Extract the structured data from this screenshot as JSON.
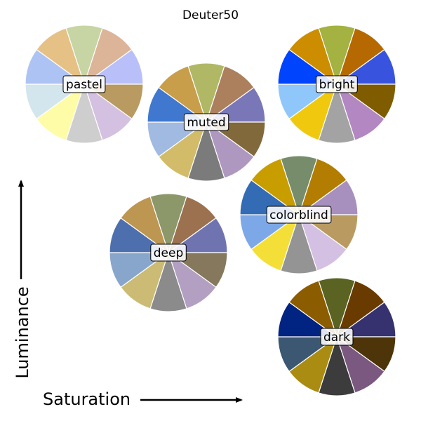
{
  "title": "Deuter50",
  "axes": {
    "x_label": "Saturation",
    "y_label": "Luminance"
  },
  "palettes": [
    {
      "key": "pastel",
      "label": "pastel",
      "colors": [
        "#c7d5a4",
        "#dcb599",
        "#b9bff9",
        "#b99a60",
        "#d4c0e1",
        "#cecece",
        "#fefca7",
        "#d3e5ed",
        "#adc3f4",
        "#e6c185"
      ]
    },
    {
      "key": "muted",
      "label": "muted",
      "colors": [
        "#b0b866",
        "#ac805d",
        "#7a77b9",
        "#82693b",
        "#ae98c0",
        "#7b7b7b",
        "#d2bc6a",
        "#a0bae2",
        "#4078d0",
        "#c99e4b"
      ]
    },
    {
      "key": "bright",
      "label": "bright",
      "colors": [
        "#a3b241",
        "#b56900",
        "#3854de",
        "#805c00",
        "#b387c1",
        "#a3a3a3",
        "#f0c90e",
        "#90c7fa",
        "#0044fe",
        "#cc8d00"
      ]
    },
    {
      "key": "colorblind",
      "label": "colorblind",
      "colors": [
        "#778c6b",
        "#b27d00",
        "#a890be",
        "#b99b62",
        "#d4c0e2",
        "#949494",
        "#f4df38",
        "#7ca8e8",
        "#336cb5",
        "#c79d00"
      ]
    },
    {
      "key": "deep",
      "label": "deep",
      "colors": [
        "#8c976a",
        "#9b7150",
        "#6f74b1",
        "#85785c",
        "#b39fc2",
        "#8b8b8b",
        "#cbbb74",
        "#88a6cc",
        "#4e6fae",
        "#bd9652"
      ]
    },
    {
      "key": "dark",
      "label": "dark",
      "colors": [
        "#5a6322",
        "#693b00",
        "#363270",
        "#4d3409",
        "#7a5880",
        "#3c3c3c",
        "#aa8c12",
        "#3c5771",
        "#012382",
        "#8b5c00"
      ]
    }
  ]
}
